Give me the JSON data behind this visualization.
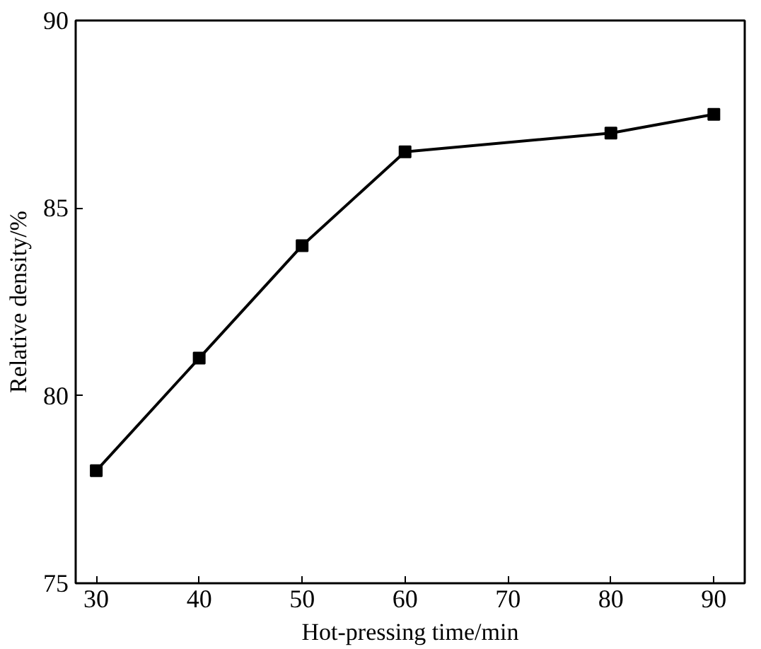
{
  "chart_data": {
    "type": "line",
    "xlabel": "Hot-pressing time/min",
    "ylabel": "Relative density/%",
    "x": [
      30,
      40,
      50,
      60,
      80,
      90
    ],
    "series": [
      {
        "color": "#000000",
        "values": [
          78,
          81,
          84,
          86.5,
          87,
          87.5
        ]
      }
    ],
    "xlim": [
      28,
      93
    ],
    "ylim": [
      75,
      90
    ],
    "xticks": [
      30,
      40,
      50,
      60,
      70,
      80,
      90
    ],
    "yticks": [
      75,
      80,
      85,
      90
    ],
    "marker": "square",
    "line_style": "solid",
    "grid": false
  }
}
